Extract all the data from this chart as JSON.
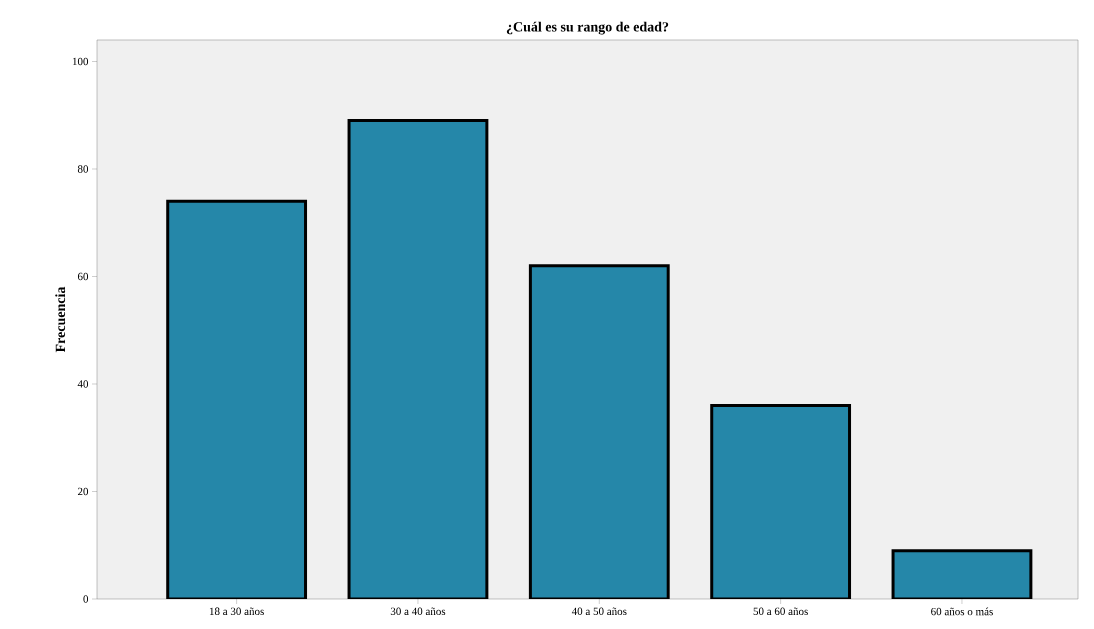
{
  "chart_data": {
    "type": "bar",
    "title": "¿Cuál es su rango de edad?",
    "ylabel": "Frecuencia",
    "categories": [
      "18 a 30 años",
      "30 a 40 años",
      "40 a 50 años",
      "50 a 60 años",
      "60 años o más"
    ],
    "values": [
      74,
      89,
      62,
      36,
      9
    ],
    "color": "#2587a9",
    "ylim": [
      0,
      104
    ],
    "yticks": [
      0,
      20,
      40,
      60,
      80,
      100
    ]
  }
}
